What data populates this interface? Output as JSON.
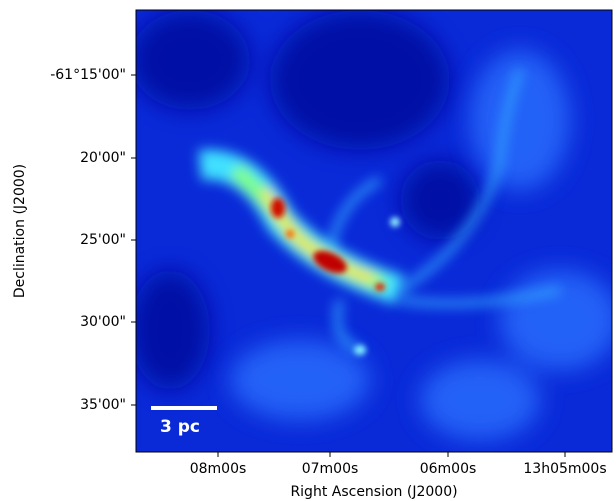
{
  "chart_data": {
    "type": "image",
    "xlabel": "Right Ascension (J2000)",
    "ylabel": "Declination (J2000)",
    "x_tick_labels": [
      "08m00s",
      "07m00s",
      "06m00s",
      "13h05m00s"
    ],
    "y_tick_labels": [
      "-61°15'00\"",
      "20'00\"",
      "25'00\"",
      "30'00\"",
      "35'00\""
    ],
    "scale_bar_label": "3 pc"
  }
}
